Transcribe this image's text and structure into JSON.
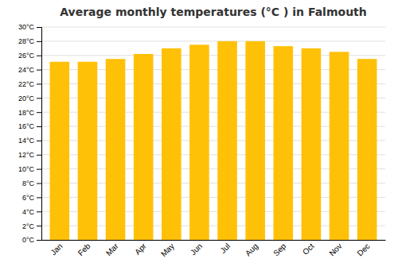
{
  "chart_data": {
    "type": "bar",
    "title": "Average monthly temperatures (°C ) in Falmouth",
    "categories": [
      "Jan",
      "Feb",
      "Mar",
      "Apr",
      "May",
      "Jun",
      "Jul",
      "Aug",
      "Sep",
      "Oct",
      "Nov",
      "Dec"
    ],
    "values": [
      25.1,
      25.1,
      25.5,
      26.2,
      27.0,
      27.5,
      28.0,
      28.0,
      27.3,
      27.0,
      26.5,
      25.5
    ],
    "color": "#FFC107",
    "ylim": [
      0,
      30
    ],
    "yticks": [
      {
        "value": 0,
        "label": "0°C"
      },
      {
        "value": 2,
        "label": "2°C"
      },
      {
        "value": 4,
        "label": "4°C"
      },
      {
        "value": 6,
        "label": "6°C"
      },
      {
        "value": 8,
        "label": "8°C"
      },
      {
        "value": 10,
        "label": "10°C"
      },
      {
        "value": 12,
        "label": "12°C"
      },
      {
        "value": 14,
        "label": "14°C"
      },
      {
        "value": 16,
        "label": "16°C"
      },
      {
        "value": 18,
        "label": "18°C"
      },
      {
        "value": 20,
        "label": "20°C"
      },
      {
        "value": 22,
        "label": "22°C"
      },
      {
        "value": 24,
        "label": "24°C"
      },
      {
        "value": 26,
        "label": "26°C"
      },
      {
        "value": 28,
        "label": "28°C"
      },
      {
        "value": 30,
        "label": "30°C"
      }
    ],
    "grid": true
  }
}
